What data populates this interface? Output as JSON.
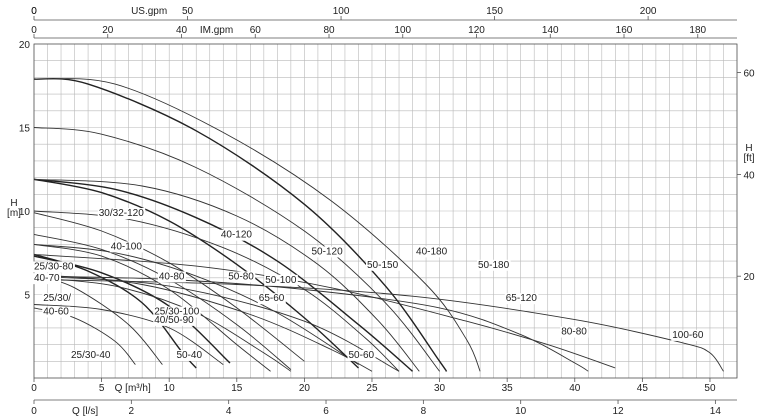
{
  "chart_data": {
    "type": "line",
    "title": "",
    "xlabel": "Q [m³/h]",
    "ylabel": "H [m]",
    "xlim": [
      0,
      52
    ],
    "ylim": [
      0,
      20
    ],
    "grid": true,
    "left_axis": {
      "label_line1": "H",
      "label_line2": "[m]",
      "ticks": [
        5,
        10,
        15,
        20
      ]
    },
    "right_axis": {
      "label_line1": "H",
      "label_line2": "[ft]",
      "ticks": [
        20,
        40,
        60
      ]
    },
    "bottom_axis_m3h": {
      "label": "Q [m³/h]",
      "ticks": [
        0,
        5,
        10,
        15,
        20,
        25,
        30,
        35,
        40,
        45,
        50
      ],
      "tick_labels": [
        "0",
        "5",
        "10",
        "15",
        "20",
        "25",
        "30",
        "35",
        "40",
        "45",
        "50"
      ]
    },
    "bottom_axis_ls": {
      "label": "Q [l/s]",
      "ticks": [
        0,
        2,
        4,
        6,
        8,
        10,
        12,
        14
      ]
    },
    "top_axis_usgpm": {
      "label": "US.gpm",
      "ticks": [
        0,
        50,
        100,
        150,
        200
      ]
    },
    "top_axis_imgpm": {
      "label": "IM.gpm",
      "ticks": [
        0,
        20,
        40,
        60,
        80,
        100,
        120,
        140,
        160,
        180
      ]
    },
    "series": [
      {
        "name": "25/30-40",
        "values": [
          [
            0,
            4.2
          ],
          [
            3,
            3.6
          ],
          [
            6,
            2.2
          ],
          [
            7.5,
            0.8
          ]
        ]
      },
      {
        "name": "25/30-60",
        "values": [
          [
            0,
            6.2
          ],
          [
            3,
            5.4
          ],
          [
            7,
            3.2
          ],
          [
            9.5,
            0.8
          ]
        ]
      },
      {
        "name": "25/30-80",
        "values": [
          [
            0,
            7.4
          ],
          [
            4,
            6.4
          ],
          [
            8,
            4.5
          ],
          [
            11,
            1.5
          ],
          [
            12,
            0.6
          ]
        ]
      },
      {
        "name": "40-60",
        "values": [
          [
            0,
            4.4
          ],
          [
            5,
            4.1
          ],
          [
            10,
            3.0
          ],
          [
            14,
            0.8
          ]
        ]
      },
      {
        "name": "40-70",
        "values": [
          [
            0,
            7.3
          ],
          [
            5,
            6.3
          ],
          [
            10,
            4.3
          ],
          [
            14.5,
            0.9
          ]
        ]
      },
      {
        "name": "40/50-90",
        "values": [
          [
            0,
            8.0
          ],
          [
            5,
            7.3
          ],
          [
            10,
            5.3
          ],
          [
            15,
            2.0
          ],
          [
            17.5,
            0.4
          ]
        ]
      },
      {
        "name": "40-80",
        "values": [
          [
            0,
            8.6
          ],
          [
            5,
            7.7
          ],
          [
            10,
            5.9
          ],
          [
            15,
            3.2
          ],
          [
            19,
            0.5
          ]
        ]
      },
      {
        "name": "40-100",
        "values": [
          [
            0,
            9.9
          ],
          [
            5,
            8.8
          ],
          [
            10,
            6.9
          ],
          [
            15,
            4.2
          ],
          [
            20,
            1.0
          ]
        ]
      },
      {
        "name": "50-40",
        "values": [
          [
            0,
            6.0
          ],
          [
            6,
            5.5
          ],
          [
            12,
            3.9
          ],
          [
            17,
            1.5
          ],
          [
            19,
            0.4
          ]
        ]
      },
      {
        "name": "50-60",
        "values": [
          [
            0,
            6.2
          ],
          [
            8,
            5.6
          ],
          [
            16,
            3.8
          ],
          [
            22,
            1.7
          ],
          [
            25,
            0.4
          ]
        ]
      },
      {
        "name": "50-80",
        "values": [
          [
            0,
            8.0
          ],
          [
            6,
            7.5
          ],
          [
            12,
            6.1
          ],
          [
            18,
            3.9
          ],
          [
            24,
            0.8
          ]
        ]
      },
      {
        "name": "65-60",
        "values": [
          [
            0,
            6.1
          ],
          [
            10,
            5.5
          ],
          [
            20,
            3.4
          ],
          [
            27,
            0.4
          ]
        ]
      },
      {
        "name": "30/32-120",
        "values": [
          [
            0,
            11.9
          ],
          [
            5,
            11.1
          ],
          [
            10,
            9.4
          ],
          [
            15,
            6.8
          ],
          [
            20,
            3.6
          ],
          [
            24,
            0.6
          ]
        ]
      },
      {
        "name": "40-120",
        "values": [
          [
            0,
            11.9
          ],
          [
            6,
            11.3
          ],
          [
            12,
            9.6
          ],
          [
            18,
            7.0
          ],
          [
            24,
            3.2
          ],
          [
            28,
            0.4
          ]
        ]
      },
      {
        "name": "50-100",
        "values": [
          [
            0,
            10.0
          ],
          [
            7,
            9.5
          ],
          [
            14,
            7.8
          ],
          [
            20,
            5.3
          ],
          [
            24.5,
            2.4
          ],
          [
            27,
            0.4
          ]
        ]
      },
      {
        "name": "50-120",
        "values": [
          [
            0,
            11.9
          ],
          [
            8,
            11.5
          ],
          [
            15,
            9.7
          ],
          [
            21,
            6.8
          ],
          [
            25.5,
            3.4
          ],
          [
            28.5,
            0.4
          ]
        ]
      },
      {
        "name": "50-150",
        "values": [
          [
            0,
            15.0
          ],
          [
            5,
            14.6
          ],
          [
            12,
            12.6
          ],
          [
            20,
            8.8
          ],
          [
            26,
            4.5
          ],
          [
            30,
            0.4
          ]
        ]
      },
      {
        "name": "40-180",
        "values": [
          [
            0,
            17.9
          ],
          [
            4,
            17.6
          ],
          [
            12,
            14.8
          ],
          [
            20,
            10.4
          ],
          [
            26,
            5.5
          ],
          [
            30,
            1.0
          ],
          [
            30.5,
            0.4
          ]
        ]
      },
      {
        "name": "50-180",
        "values": [
          [
            0,
            17.9
          ],
          [
            6,
            17.6
          ],
          [
            14,
            14.7
          ],
          [
            22,
            10.6
          ],
          [
            29,
            5.6
          ],
          [
            32,
            2.3
          ],
          [
            33,
            0.4
          ]
        ]
      },
      {
        "name": "65-120",
        "values": [
          [
            0,
            6.1
          ],
          [
            10,
            5.9
          ],
          [
            20,
            5.3
          ],
          [
            30,
            4.2
          ],
          [
            36,
            2.6
          ],
          [
            40,
            0.9
          ],
          [
            41,
            0.4
          ]
        ]
      },
      {
        "name": "80-80",
        "values": [
          [
            0,
            7.4
          ],
          [
            12,
            6.7
          ],
          [
            22,
            5.4
          ],
          [
            32,
            3.4
          ],
          [
            38,
            2.0
          ],
          [
            43,
            0.6
          ]
        ]
      },
      {
        "name": "100-60",
        "values": [
          [
            0,
            5.9
          ],
          [
            15,
            5.6
          ],
          [
            28,
            4.9
          ],
          [
            40,
            3.5
          ],
          [
            48,
            2.1
          ],
          [
            50,
            1.5
          ],
          [
            51,
            0.4
          ]
        ]
      }
    ],
    "labels": [
      {
        "text": "30/32-120",
        "x": 7.0,
        "y": 9.7
      },
      {
        "text": "40-120",
        "x": 20.2,
        "y": 8.4
      },
      {
        "text": "40-100",
        "x": 8.3,
        "y": 7.7
      },
      {
        "text": "50-120",
        "x": 30.0,
        "y": 7.4
      },
      {
        "text": "40-180",
        "x": 41.3,
        "y": 7.4
      },
      {
        "text": "25/30-80",
        "x": 0.0,
        "y": 6.5
      },
      {
        "text": "50-150",
        "x": 36.0,
        "y": 6.6
      },
      {
        "text": "50-180",
        "x": 48.0,
        "y": 6.6
      },
      {
        "text": "40-70",
        "x": 0.0,
        "y": 5.8
      },
      {
        "text": "40-80",
        "x": 13.5,
        "y": 5.9
      },
      {
        "text": "50-80",
        "x": 21.0,
        "y": 5.9
      },
      {
        "text": "50-100",
        "x": 25.0,
        "y": 5.7
      },
      {
        "text": "65-120",
        "x": 51.0,
        "y": 4.6
      },
      {
        "text": "25/30/",
        "x": 1.0,
        "y": 4.6
      },
      {
        "text": "65-60",
        "x": 24.3,
        "y": 4.6
      },
      {
        "text": "40-60",
        "x": 1.0,
        "y": 3.8
      },
      {
        "text": "25/30-100",
        "x": 13.0,
        "y": 3.8
      },
      {
        "text": "40/50-90",
        "x": 13.0,
        "y": 3.3
      },
      {
        "text": "80-80",
        "x": 57.0,
        "y": 2.6
      },
      {
        "text": "100-60",
        "x": 69.0,
        "y": 2.4
      },
      {
        "text": "25/30-40",
        "x": 4.0,
        "y": 1.2
      },
      {
        "text": "50-40",
        "x": 15.4,
        "y": 1.2
      },
      {
        "text": "50-60",
        "x": 34.0,
        "y": 1.2
      }
    ]
  }
}
